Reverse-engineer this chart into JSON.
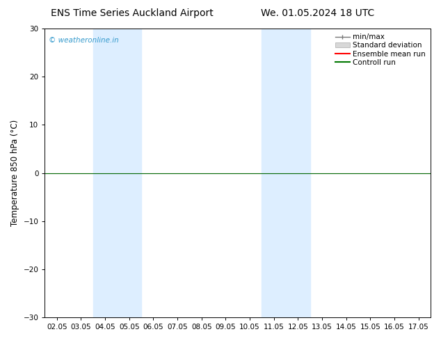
{
  "title_left": "ENS Time Series Auckland Airport",
  "title_right": "We. 01.05.2024 18 UTC",
  "ylabel": "Temperature 850 hPa (°C)",
  "ylim": [
    -30,
    30
  ],
  "yticks": [
    -30,
    -20,
    -10,
    0,
    10,
    20,
    30
  ],
  "xlabels": [
    "02.05",
    "03.05",
    "04.05",
    "05.05",
    "06.05",
    "07.05",
    "08.05",
    "09.05",
    "10.05",
    "11.05",
    "12.05",
    "13.05",
    "14.05",
    "15.05",
    "16.05",
    "17.05"
  ],
  "shaded_indices": [
    2,
    3,
    9,
    10
  ],
  "shade_color": "#ddeeff",
  "zero_line_color": "#006600",
  "bg_color": "#ffffff",
  "plot_bg_color": "#ffffff",
  "watermark": "© weatheronline.in",
  "watermark_color": "#3399cc",
  "legend_items": [
    {
      "label": "min/max",
      "color": "#888888",
      "style": "minmax"
    },
    {
      "label": "Standard deviation",
      "color": "#cccccc",
      "style": "std"
    },
    {
      "label": "Ensemble mean run",
      "color": "#ff0000",
      "style": "line"
    },
    {
      "label": "Controll run",
      "color": "#007700",
      "style": "line"
    }
  ],
  "tick_fontsize": 7.5,
  "label_fontsize": 8.5,
  "title_fontsize": 10,
  "legend_fontsize": 7.5
}
